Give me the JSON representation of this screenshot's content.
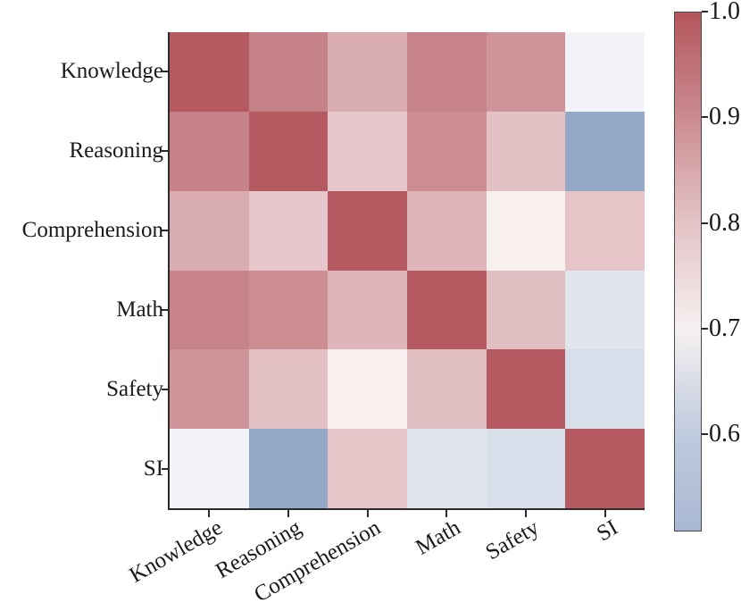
{
  "chart_data": {
    "type": "heatmap",
    "title": "",
    "xlabel": "",
    "ylabel": "",
    "categories": [
      "Knowledge",
      "Reasoning",
      "Comprehension",
      "Math",
      "Safety",
      "SI"
    ],
    "matrix": [
      [
        1.0,
        0.92,
        0.86,
        0.92,
        0.89,
        0.7
      ],
      [
        0.92,
        1.0,
        0.8,
        0.91,
        0.81,
        0.52
      ],
      [
        0.86,
        0.8,
        1.0,
        0.84,
        0.72,
        0.8
      ],
      [
        0.92,
        0.91,
        0.84,
        1.0,
        0.82,
        0.67
      ],
      [
        0.89,
        0.81,
        0.72,
        0.82,
        1.0,
        0.65
      ],
      [
        0.7,
        0.52,
        0.8,
        0.67,
        0.65,
        1.0
      ]
    ],
    "cell_colors": [
      [
        "#b45a60",
        "#c68289",
        "#d8acb1",
        "#c7838a",
        "#cf9499",
        "#f3f4f9"
      ],
      [
        "#c68289",
        "#b45a60",
        "#e6c7cb",
        "#cc8d92",
        "#e3c1c5",
        "#94a8c7"
      ],
      [
        "#d8acb1",
        "#e6c7cb",
        "#b45a60",
        "#deb5ba",
        "#f7f0ef",
        "#e6c4c8"
      ],
      [
        "#c7838a",
        "#cc8d92",
        "#deb5ba",
        "#b45a60",
        "#e1bec2",
        "#e1e6ee"
      ],
      [
        "#cf9499",
        "#e3c1c5",
        "#f7f0ef",
        "#e1bec2",
        "#b45a60",
        "#d8dfeb"
      ],
      [
        "#f3f4f9",
        "#94a8c7",
        "#e6c4c8",
        "#e1e6ee",
        "#d8dfeb",
        "#b45a60"
      ]
    ],
    "colormap": "diverging red-white-blue (vlag-like)",
    "grid": false,
    "x_tick_rotation_deg": 30,
    "colorbar": {
      "position": "right",
      "vmin": 0.51,
      "vmax": 1.0,
      "tick_labels": [
        "1.0",
        "0.9",
        "0.8",
        "0.7",
        "0.6"
      ],
      "tick_values": [
        1.0,
        0.9,
        0.8,
        0.7,
        0.6
      ],
      "gradient_stops": [
        {
          "pos": 0.0,
          "color": "#b4565c"
        },
        {
          "pos": 0.2,
          "color": "#ca8b90"
        },
        {
          "pos": 0.405,
          "color": "#e4c3c6"
        },
        {
          "pos": 0.61,
          "color": "#f6f0f0"
        },
        {
          "pos": 0.82,
          "color": "#becade"
        },
        {
          "pos": 1.0,
          "color": "#a9b8d2"
        }
      ]
    }
  },
  "colors": {
    "background": "#ffffff",
    "text": "#1a1a1a",
    "spine": "#2b2b2b",
    "diagonal": "#b45a60"
  }
}
